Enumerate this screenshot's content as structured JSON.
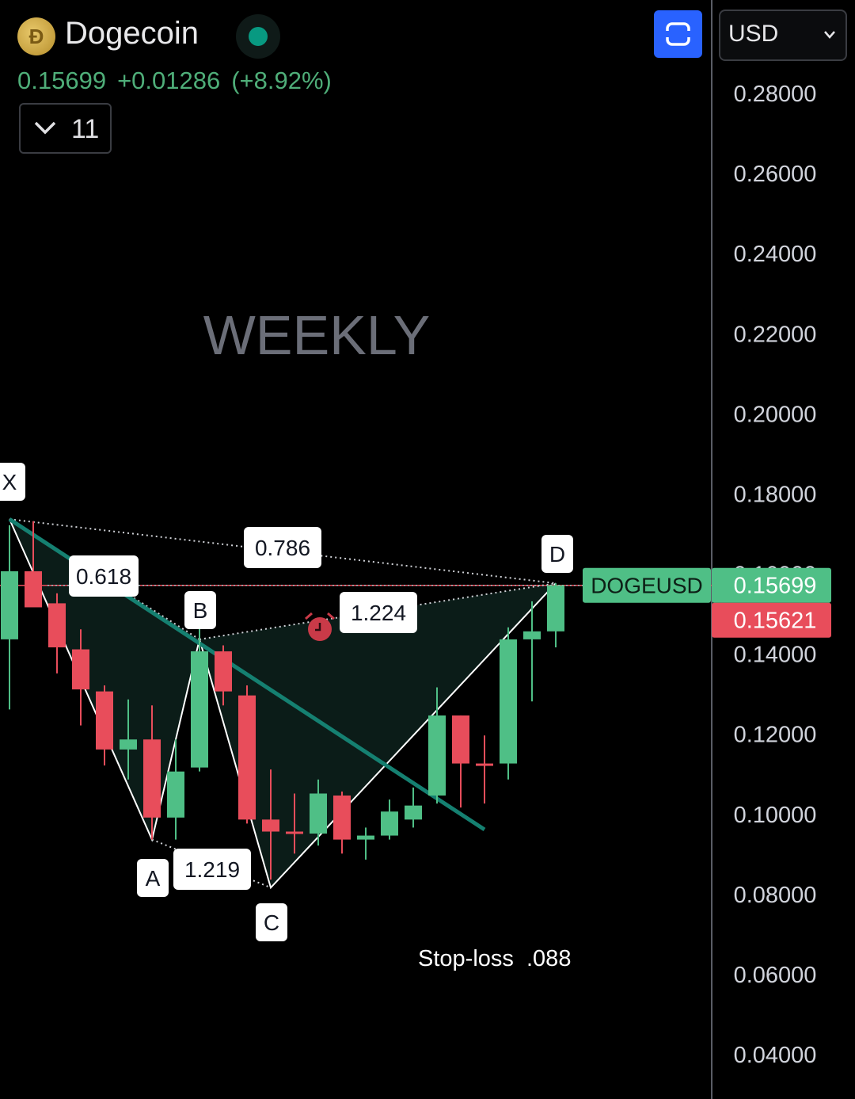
{
  "header": {
    "coin_symbol_glyph": "Ð",
    "coin_name": "Dogecoin",
    "price": "0.15699",
    "change_abs": "+0.01286",
    "change_pct": "(+8.92%)",
    "indicator_count": "11",
    "currency": "USD"
  },
  "colors": {
    "up": "#4fbf86",
    "down": "#e84d5b",
    "accent_blue": "#2962ff",
    "trendline": "#158071",
    "pattern_fill": "#0b1c18",
    "last_price_line": "#e84d5b"
  },
  "chart_data": {
    "type": "candlestick",
    "title": "WEEKLY",
    "symbol_label": "DOGEUSD",
    "last_price": "0.15699",
    "prev_close_label": "0.15621",
    "ylim": [
      0.03,
      0.3
    ],
    "yticks": [
      "0.28000",
      "0.26000",
      "0.24000",
      "0.22000",
      "0.20000",
      "0.18000",
      "0.16000",
      "0.14000",
      "0.12000",
      "0.10000",
      "0.08000",
      "0.06000",
      "0.04000"
    ],
    "candles": [
      {
        "o": 0.1435,
        "h": 0.172,
        "l": 0.126,
        "c": 0.1605
      },
      {
        "o": 0.1605,
        "h": 0.173,
        "l": 0.154,
        "c": 0.1515
      },
      {
        "o": 0.1525,
        "h": 0.155,
        "l": 0.135,
        "c": 0.1415
      },
      {
        "o": 0.141,
        "h": 0.146,
        "l": 0.122,
        "c": 0.131
      },
      {
        "o": 0.1305,
        "h": 0.132,
        "l": 0.112,
        "c": 0.116
      },
      {
        "o": 0.116,
        "h": 0.1285,
        "l": 0.1085,
        "c": 0.1185
      },
      {
        "o": 0.1185,
        "h": 0.127,
        "l": 0.0935,
        "c": 0.099
      },
      {
        "o": 0.099,
        "h": 0.1185,
        "l": 0.0935,
        "c": 0.1105
      },
      {
        "o": 0.1115,
        "h": 0.148,
        "l": 0.1105,
        "c": 0.1405
      },
      {
        "o": 0.1405,
        "h": 0.142,
        "l": 0.127,
        "c": 0.1305
      },
      {
        "o": 0.1295,
        "h": 0.132,
        "l": 0.0975,
        "c": 0.0985
      },
      {
        "o": 0.0985,
        "h": 0.111,
        "l": 0.0835,
        "c": 0.0955
      },
      {
        "o": 0.0955,
        "h": 0.105,
        "l": 0.09,
        "c": 0.095
      },
      {
        "o": 0.095,
        "h": 0.1085,
        "l": 0.092,
        "c": 0.105
      },
      {
        "o": 0.1045,
        "h": 0.1055,
        "l": 0.09,
        "c": 0.0935
      },
      {
        "o": 0.0935,
        "h": 0.0965,
        "l": 0.0885,
        "c": 0.0945
      },
      {
        "o": 0.0945,
        "h": 0.1035,
        "l": 0.0935,
        "c": 0.1005
      },
      {
        "o": 0.0985,
        "h": 0.1065,
        "l": 0.0965,
        "c": 0.102
      },
      {
        "o": 0.1045,
        "h": 0.1315,
        "l": 0.1025,
        "c": 0.1245
      },
      {
        "o": 0.1245,
        "h": 0.1245,
        "l": 0.1015,
        "c": 0.1125
      },
      {
        "o": 0.1125,
        "h": 0.1195,
        "l": 0.1025,
        "c": 0.112
      },
      {
        "o": 0.1125,
        "h": 0.1465,
        "l": 0.1085,
        "c": 0.1435
      },
      {
        "o": 0.1435,
        "h": 0.153,
        "l": 0.128,
        "c": 0.1455
      },
      {
        "o": 0.1455,
        "h": 0.1575,
        "l": 0.1415,
        "c": 0.157
      }
    ],
    "harmonic_points": [
      {
        "label": "X",
        "candle": 0,
        "price": 0.1735
      },
      {
        "label": "A",
        "candle": 6,
        "price": 0.0935
      },
      {
        "label": "B",
        "candle": 8,
        "price": 0.1435
      },
      {
        "label": "C",
        "candle": 11,
        "price": 0.0815
      },
      {
        "label": "D",
        "candle": 23,
        "price": 0.1575
      }
    ],
    "ratio_labels": [
      "0.618",
      "0.786",
      "1.219",
      "1.224"
    ],
    "trendline": {
      "from": {
        "candle": 0,
        "price": 0.1735
      },
      "to": {
        "candle": 20,
        "price": 0.096
      }
    },
    "annotation": "Stop-loss  .088"
  }
}
